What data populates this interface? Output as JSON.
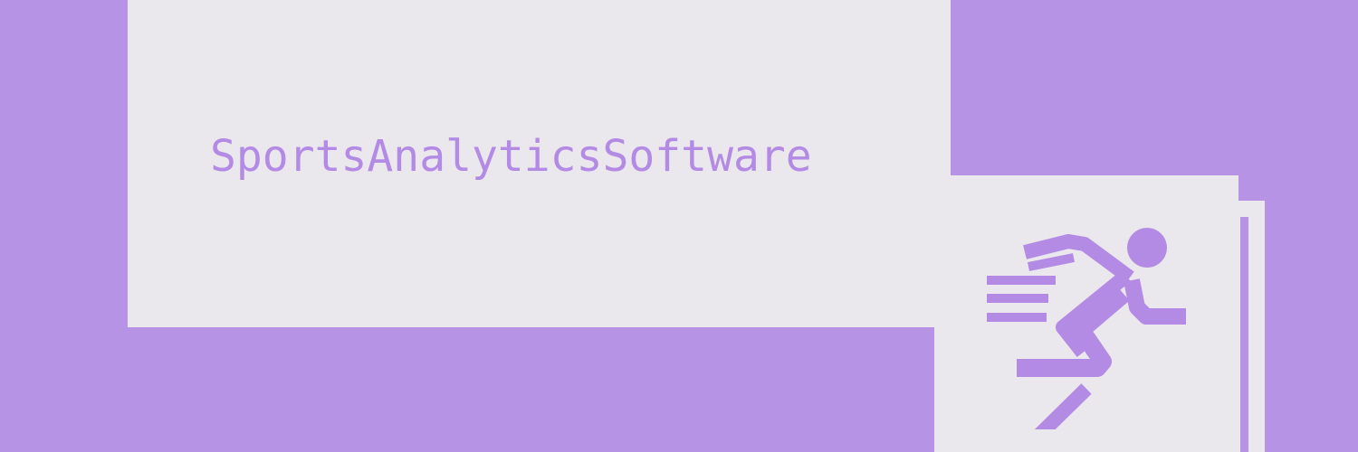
{
  "banner": {
    "title": "SportsAnalyticsSoftware",
    "icon": "running-person-icon"
  },
  "colors": {
    "background": "#b693e5",
    "panel": "#eae7ed",
    "accent": "#b38ae4"
  }
}
